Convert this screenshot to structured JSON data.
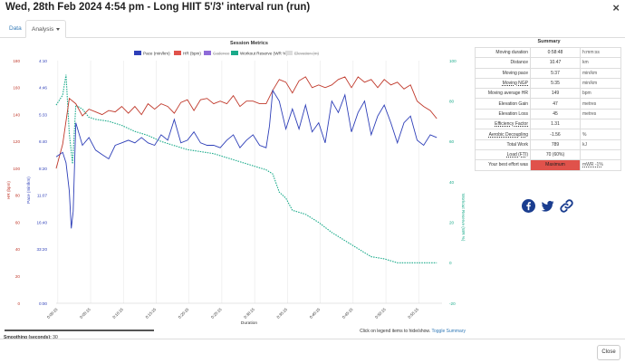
{
  "window": {
    "title": "Wed, 28th Feb 2024 4:54 pm - Long HIIT 5'/3' interval run (run)",
    "close_glyph": "×"
  },
  "tabs": [
    {
      "label": "Data",
      "active": false
    },
    {
      "label": "Analysis",
      "active": true
    }
  ],
  "chart_data": {
    "type": "line",
    "title": "Session Metrics",
    "xlabel": "Duration",
    "x_ticks": [
      "0:00:15",
      "0:05:15",
      "0:10:15",
      "0:15:15",
      "0:20:15",
      "0:25:15",
      "0:30:15",
      "0:35:15",
      "0:40:15",
      "0:45:15",
      "0:50:15",
      "0:55:15"
    ],
    "x_range_minutes": [
      0,
      58.8
    ],
    "axes": {
      "hr": {
        "label": "HR (bpm)",
        "color": "#c0392b",
        "ticks": [
          "180",
          "160",
          "140",
          "120",
          "100",
          "80",
          "60",
          "40",
          "20",
          "0"
        ],
        "range": [
          0,
          180
        ]
      },
      "pace": {
        "label": "Pace (min/km)",
        "color": "#2e3fb8",
        "ticks": [
          "4:10",
          "4:46",
          "5:33",
          "6:40",
          "8:20",
          "11:07",
          "16:40",
          "33:20",
          "0:00"
        ]
      },
      "wr": {
        "label": "Workout Reserve (WR %)",
        "color": "#1aaa8a",
        "ticks": [
          "100",
          "80",
          "60",
          "40",
          "20",
          "0",
          "-20"
        ],
        "range": [
          -20,
          100
        ]
      }
    },
    "legend": [
      {
        "name": "Pace (min/km)",
        "color": "#2e3fb8",
        "hidden": false
      },
      {
        "name": "HR (bpm)",
        "color": "#e0524b",
        "hidden": false
      },
      {
        "name": "Cadence",
        "color": "#8e6bd8",
        "hidden": true
      },
      {
        "name": "Workout Reserve (WR %)",
        "color": "#1aaa8a",
        "hidden": false
      },
      {
        "name": "Elevation (m)",
        "color": "#dddddd",
        "hidden": true
      }
    ],
    "series": [
      {
        "name": "HR (bpm)",
        "axis": "hr",
        "t": [
          0,
          1,
          2,
          3,
          4,
          5,
          6,
          7,
          8,
          9,
          10,
          11,
          12,
          13,
          14,
          15,
          16,
          17,
          18,
          19,
          20,
          21,
          22,
          23,
          24,
          25,
          26,
          27,
          28,
          29,
          30,
          31,
          32,
          33,
          34,
          35,
          36,
          37,
          38,
          39,
          40,
          41,
          42,
          43,
          44,
          45,
          46,
          47,
          48,
          49,
          50,
          51,
          52,
          53,
          54,
          55,
          56,
          57,
          58
        ],
        "values": [
          100,
          118,
          152,
          148,
          139,
          144,
          142,
          140,
          143,
          142,
          146,
          141,
          146,
          140,
          148,
          144,
          148,
          146,
          141,
          149,
          151,
          143,
          151,
          152,
          148,
          150,
          148,
          154,
          146,
          150,
          150,
          148,
          148,
          158,
          166,
          164,
          156,
          165,
          168,
          160,
          162,
          160,
          162,
          166,
          168,
          160,
          168,
          164,
          166,
          160,
          166,
          162,
          164,
          159,
          162,
          150,
          146,
          143,
          137
        ]
      },
      {
        "name": "Pace (min/km)",
        "axis": "pace",
        "t": [
          0,
          1,
          1.5,
          2,
          2.3,
          2.6,
          3,
          4,
          5,
          6,
          7,
          8,
          9,
          10,
          11,
          12,
          13,
          14,
          15,
          16,
          17,
          18,
          19,
          20,
          21,
          22,
          23,
          24,
          25,
          26,
          27,
          28,
          29,
          30,
          31,
          32,
          32.5,
          33,
          34,
          35,
          36,
          37,
          38,
          39,
          40,
          41,
          42,
          43,
          44,
          45,
          46,
          47,
          48,
          49,
          50,
          51,
          52,
          53,
          54,
          55,
          56,
          57,
          58
        ],
        "values": [
          6.9,
          6.7,
          7.2,
          9.0,
          13.5,
          11.0,
          5.6,
          6.4,
          6.1,
          6.6,
          6.8,
          7.0,
          6.4,
          6.3,
          6.2,
          6.3,
          6.1,
          6.3,
          6.4,
          6.0,
          6.2,
          5.5,
          6.3,
          6.2,
          5.9,
          6.3,
          6.4,
          6.4,
          6.5,
          6.2,
          6.0,
          6.5,
          6.2,
          6.0,
          6.4,
          6.5,
          5.7,
          4.75,
          5.0,
          5.8,
          5.2,
          5.8,
          5.1,
          5.9,
          5.6,
          6.3,
          5.0,
          5.3,
          4.85,
          5.9,
          5.3,
          5.0,
          6.0,
          5.4,
          5.1,
          5.6,
          6.3,
          5.6,
          5.4,
          6.2,
          6.4,
          6.0,
          6.1
        ]
      },
      {
        "name": "Workout Reserve (WR %)",
        "axis": "wr",
        "t": [
          0,
          1,
          1.5,
          2,
          2.5,
          3,
          4,
          5,
          6,
          8,
          10,
          12,
          14,
          16,
          18,
          20,
          22,
          24,
          26,
          28,
          30,
          32,
          33,
          34,
          35,
          36,
          37,
          38,
          40,
          42,
          44,
          46,
          48,
          50,
          52,
          54,
          56,
          58
        ],
        "values": [
          78,
          83,
          93,
          64,
          49,
          78,
          76,
          72,
          71,
          70,
          68,
          65,
          63,
          60,
          58,
          56,
          55,
          54,
          52,
          50,
          48,
          46,
          44,
          35,
          32,
          26,
          25,
          24,
          20,
          15,
          11,
          7,
          3,
          2,
          0,
          0,
          0,
          0
        ]
      }
    ]
  },
  "chart_ui": {
    "smoothing_label": "Smoothing (seconds):",
    "smoothing_value": "30",
    "legend_hint": "Click on legend items to hide/show.",
    "toggle_summary_label": "Toggle Summary"
  },
  "summary": {
    "title": "Summary",
    "rows": [
      {
        "label": "Moving duration",
        "value": "0:58:48",
        "unit": "h:mm:ss",
        "dotted": false
      },
      {
        "label": "Distance",
        "value": "10.47",
        "unit": "km",
        "dotted": false
      },
      {
        "label": "Moving pace",
        "value": "5:37",
        "unit": "min/km",
        "dotted": false
      },
      {
        "label": "Moving NGP",
        "value": "5:35",
        "unit": "min/km",
        "dotted": true
      },
      {
        "label": "Moving average HR",
        "value": "149",
        "unit": "bpm",
        "dotted": false
      },
      {
        "label": "Elevation Gain",
        "value": "47",
        "unit": "metres",
        "dotted": false
      },
      {
        "label": "Elevation Loss",
        "value": "45",
        "unit": "metres",
        "dotted": false
      },
      {
        "label": "Efficiency Factor",
        "value": "1.31",
        "unit": "",
        "dotted": true
      },
      {
        "label": "Aerobic Decoupling",
        "value": "-1.56",
        "unit": "%",
        "dotted": true
      },
      {
        "label": "Total Work",
        "value": "789",
        "unit": "kJ",
        "dotted": false
      },
      {
        "label": "Load (FTI)",
        "value": "70 (60%)",
        "unit": "",
        "dotted": true
      },
      {
        "label": "Your best effort was",
        "value": "Maximum",
        "unit": "mWR -1%",
        "dotted": false,
        "highlight": "#e0524b"
      }
    ]
  },
  "social": [
    {
      "icon": "facebook-icon",
      "color": "#1a3d8f"
    },
    {
      "icon": "twitter-icon",
      "color": "#1a3d8f"
    },
    {
      "icon": "link-icon",
      "color": "#1a3d8f"
    }
  ],
  "footer": {
    "close_label": "Close"
  }
}
